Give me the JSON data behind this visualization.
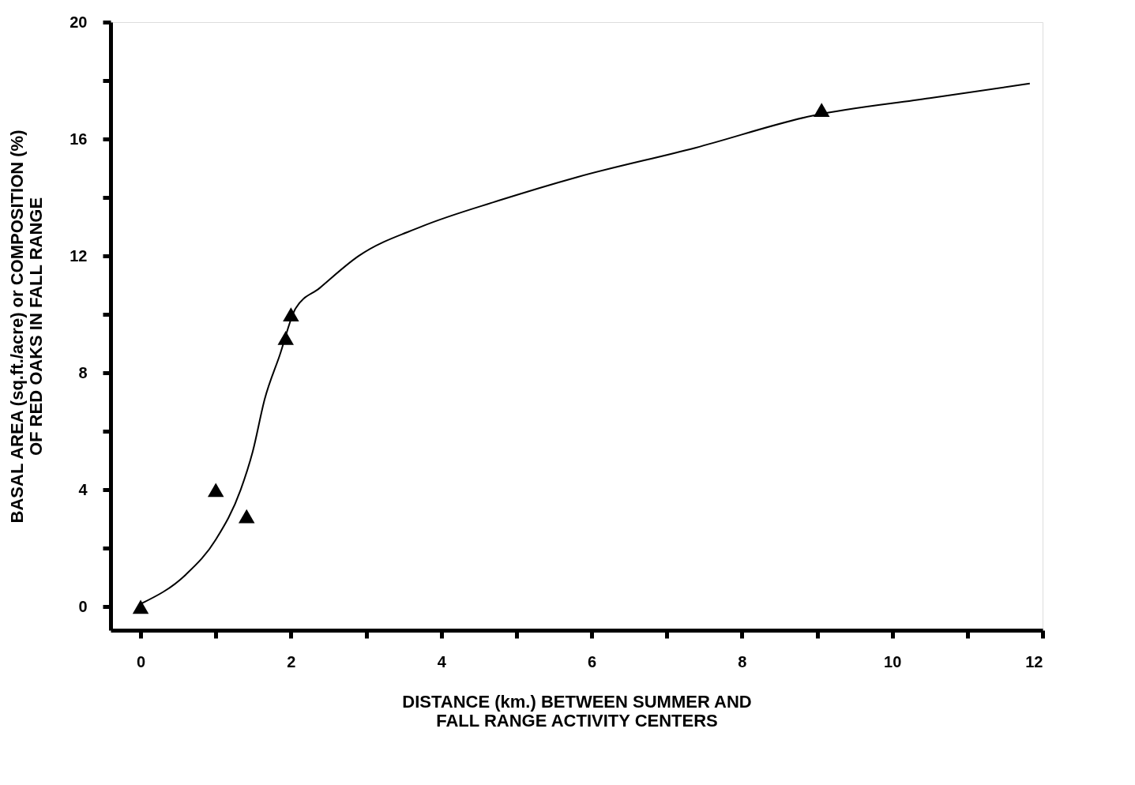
{
  "chart_data": {
    "type": "scatter",
    "xlabel": "DISTANCE (km.) BETWEEN SUMMER AND\nFALL RANGE ACTIVITY CENTERS",
    "ylabel": "BASAL AREA (sq.ft./acre) or COMPOSITION (%)\nOF RED OAKS IN FALL RANGE",
    "xlim": [
      -0.4,
      12
    ],
    "ylim": [
      -0.8,
      20
    ],
    "xticks": [
      0,
      {
        "value": 1,
        "label": null
      },
      2,
      {
        "value": 3,
        "label": null
      },
      4,
      {
        "value": 5,
        "label": null
      },
      6,
      {
        "value": 7,
        "label": null
      },
      8,
      {
        "value": 9,
        "label": null
      },
      10,
      {
        "value": 11,
        "label": null
      },
      12
    ],
    "yticks": [
      0,
      {
        "value": 2,
        "label": null
      },
      4,
      {
        "value": 6,
        "label": null
      },
      8,
      {
        "value": 10,
        "label": null
      },
      12,
      {
        "value": 14,
        "label": null
      },
      16,
      {
        "value": 18,
        "label": null
      },
      20
    ],
    "grid": false,
    "series": [
      {
        "type": "line",
        "color": "#000000",
        "marker": "none",
        "line_style": "solid",
        "x": [
          0,
          0.6,
          1.0,
          1.33,
          1.49,
          1.65,
          1.85,
          2.06,
          2.38,
          2.9,
          3.73,
          4.77,
          5.81,
          7.38,
          8.94,
          10.5,
          11.83
        ],
        "values": [
          0.1,
          1.1,
          2.3,
          4.0,
          5.3,
          7.1,
          8.6,
          10.2,
          10.9,
          12.0,
          13.0,
          13.9,
          14.7,
          15.7,
          16.8,
          17.4,
          17.9
        ]
      },
      {
        "color": "#000000",
        "marker": "triangle",
        "x": [
          0,
          1.0,
          1.41,
          1.93,
          2.0,
          9.06
        ],
        "values": [
          0,
          4.0,
          3.1,
          9.2,
          10.0,
          17.0
        ]
      }
    ]
  }
}
